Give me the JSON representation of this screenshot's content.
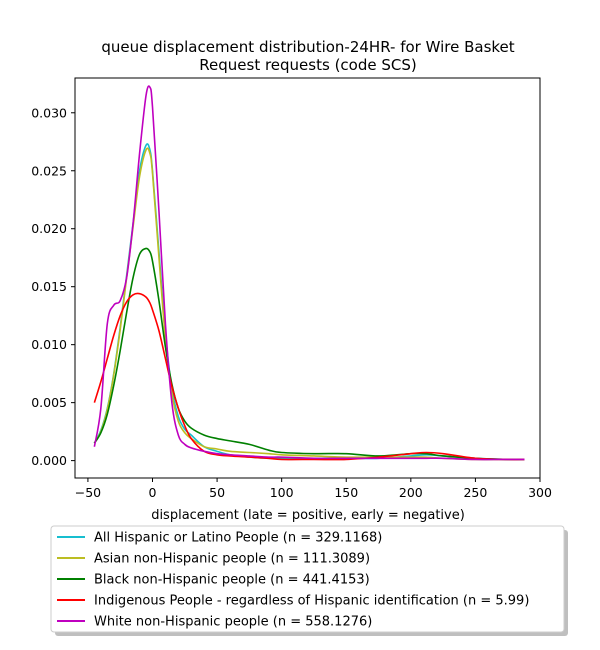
{
  "chart_data": {
    "type": "line",
    "title": "queue displacement distribution-24HR-  for Wire Basket\nRequest  requests (code SCS)",
    "xlabel": "displacement (late = positive, early = negative)",
    "ylabel": "",
    "xlim": [
      -60,
      300
    ],
    "ylim": [
      -0.0015,
      0.033
    ],
    "x_ticks": [
      -50,
      0,
      50,
      100,
      150,
      200,
      250,
      300
    ],
    "y_ticks": [
      0.0,
      0.005,
      0.01,
      0.015,
      0.02,
      0.025,
      0.03
    ],
    "x_tick_labels": [
      "−50",
      "0",
      "50",
      "100",
      "150",
      "200",
      "250",
      "300"
    ],
    "y_tick_labels": [
      "0.000",
      "0.005",
      "0.010",
      "0.015",
      "0.020",
      "0.025",
      "0.030"
    ],
    "grid": false,
    "legend_position": "below",
    "x": [
      -45,
      -40,
      -35,
      -30,
      -25,
      -20,
      -15,
      -10,
      -5,
      -2,
      0,
      5,
      10,
      15,
      20,
      25,
      30,
      40,
      50,
      60,
      75,
      90,
      100,
      125,
      150,
      175,
      200,
      212,
      225,
      250,
      275,
      288
    ],
    "series": [
      {
        "name": "All Hispanic or Latino People (n = 329.1168)",
        "color": "#17becf",
        "values": [
          0.0015,
          0.0026,
          0.0045,
          0.0075,
          0.0115,
          0.016,
          0.0205,
          0.025,
          0.0272,
          0.0268,
          0.025,
          0.018,
          0.011,
          0.0062,
          0.0038,
          0.0027,
          0.0022,
          0.0012,
          0.0008,
          0.0005,
          0.0003,
          0.0002,
          0.0002,
          0.0002,
          0.0002,
          0.0002,
          0.0004,
          0.0005,
          0.0004,
          0.0002,
          0.0001,
          0.0001
        ]
      },
      {
        "name": "Asian non-Hispanic people (n = 111.3089)",
        "color": "#bcbd22",
        "values": [
          0.0015,
          0.0025,
          0.0044,
          0.0074,
          0.0113,
          0.0158,
          0.0202,
          0.0245,
          0.0268,
          0.0265,
          0.0248,
          0.0175,
          0.0105,
          0.0058,
          0.0034,
          0.0024,
          0.0019,
          0.0012,
          0.001,
          0.0008,
          0.0007,
          0.0006,
          0.0005,
          0.0004,
          0.0003,
          0.0003,
          0.0003,
          0.0003,
          0.0002,
          0.0001,
          0.0001,
          0.0001
        ]
      },
      {
        "name": "Black non-Hispanic people (n = 441.4153)",
        "color": "#008000",
        "values": [
          0.0015,
          0.0024,
          0.004,
          0.0065,
          0.0095,
          0.0128,
          0.0158,
          0.0178,
          0.0183,
          0.018,
          0.0172,
          0.0138,
          0.0098,
          0.0066,
          0.0045,
          0.0034,
          0.0028,
          0.0022,
          0.0019,
          0.0017,
          0.0014,
          0.0009,
          0.0007,
          0.0006,
          0.0006,
          0.0004,
          0.0006,
          0.0006,
          0.0004,
          0.0002,
          0.0001,
          0.0001
        ]
      },
      {
        "name": "Indigenous People - regardless of Hispanic identification (n = 5.99)",
        "color": "#ff0000",
        "values": [
          0.005,
          0.0068,
          0.0088,
          0.0108,
          0.0125,
          0.0137,
          0.0143,
          0.0144,
          0.0141,
          0.0136,
          0.013,
          0.0112,
          0.0088,
          0.0064,
          0.0045,
          0.003,
          0.0019,
          0.0008,
          0.0005,
          0.0004,
          0.0003,
          0.0002,
          0.0001,
          0.0001,
          0.0001,
          0.0003,
          0.0006,
          0.0007,
          0.0006,
          0.0002,
          0.0001,
          0.0001
        ]
      },
      {
        "name": "White non-Hispanic people (n = 558.1276)",
        "color": "#bf00bf",
        "values": [
          0.0012,
          0.0045,
          0.0118,
          0.0134,
          0.0138,
          0.0158,
          0.0205,
          0.0265,
          0.0315,
          0.0322,
          0.0305,
          0.0215,
          0.0118,
          0.005,
          0.0022,
          0.0014,
          0.0011,
          0.0008,
          0.0006,
          0.0005,
          0.0004,
          0.0003,
          0.0003,
          0.0002,
          0.0002,
          0.0002,
          0.0002,
          0.0002,
          0.0002,
          0.0001,
          0.0001,
          0.0001
        ]
      }
    ]
  }
}
